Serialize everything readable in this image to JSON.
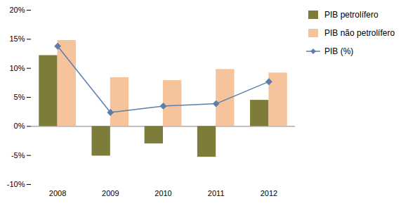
{
  "chart_data": {
    "type": "bar",
    "categories": [
      "2008",
      "2009",
      "2010",
      "2011",
      "2012"
    ],
    "series": [
      {
        "name": "PIB petrolífero",
        "type": "bar",
        "color": "#7d7c3a",
        "values": [
          12.2,
          -5.1,
          -3.0,
          -5.3,
          4.5
        ]
      },
      {
        "name": "PIB não petrolífero",
        "type": "bar",
        "color": "#f5c49c",
        "values": [
          14.8,
          8.4,
          7.9,
          9.8,
          9.2
        ]
      },
      {
        "name": "PIB (%)",
        "type": "line",
        "color": "#5b7faa",
        "marker": "diamond",
        "values": [
          13.8,
          2.4,
          3.5,
          3.9,
          7.7
        ]
      }
    ],
    "ylim": [
      -10,
      20
    ],
    "yticks": [
      {
        "value": -10,
        "label": "-10%"
      },
      {
        "value": -5,
        "label": "-5%"
      },
      {
        "value": 0,
        "label": "0%"
      },
      {
        "value": 5,
        "label": "5%"
      },
      {
        "value": 10,
        "label": "10%"
      },
      {
        "value": 15,
        "label": "15%"
      },
      {
        "value": 20,
        "label": "20%"
      }
    ],
    "grid": false,
    "legend": "right"
  }
}
